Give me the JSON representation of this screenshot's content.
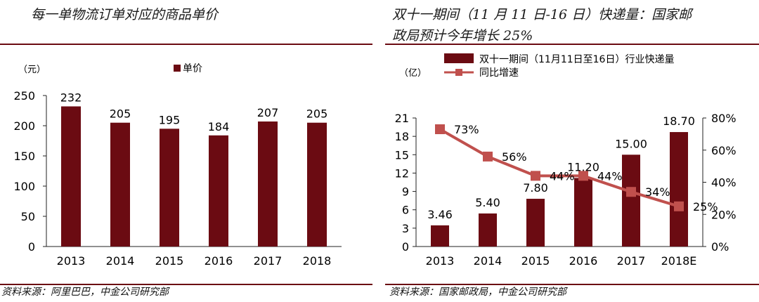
{
  "left": {
    "title": "每一单物流订单对应的商品单价",
    "unit": "（元）",
    "source": "资料来源：阿里巴巴，中金公司研究部"
  },
  "right": {
    "title_line1": "双十一期间（11 月 11 日-16 日）快递量：国家邮",
    "title_line2": "政局预计今年增长 25%",
    "unit": "（亿）",
    "source": "资料来源：国家邮政局，中金公司研究部"
  },
  "chart_data": [
    {
      "type": "bar",
      "title": "每一单物流订单对应的商品单价",
      "ylabel": "（元）",
      "categories": [
        "2013",
        "2014",
        "2015",
        "2016",
        "2017",
        "2018"
      ],
      "series": [
        {
          "name": "单价",
          "values": [
            232,
            205,
            195,
            184,
            207,
            205
          ],
          "labels": [
            "232",
            "205",
            "195",
            "184",
            "207",
            "205"
          ],
          "color": "#6b0b12"
        }
      ],
      "ylim": [
        0,
        250
      ],
      "yticks": [
        0,
        50,
        100,
        150,
        200,
        250
      ],
      "legend": "top"
    },
    {
      "type": "bar",
      "title": "双十一期间（11 月 11 日-16 日）快递量：国家邮政局预计今年增长 25%",
      "ylabel": "（亿）",
      "categories": [
        "2013",
        "2014",
        "2015",
        "2016",
        "2017",
        "2018E"
      ],
      "series": [
        {
          "name": "双十一期间（11月11日至16日）行业快递量",
          "kind": "bar",
          "axis": "left",
          "values": [
            3.46,
            5.4,
            7.8,
            11.2,
            15.0,
            18.7
          ],
          "labels": [
            "3.46",
            "5.40",
            "7.80",
            "11.20",
            "15.00",
            "18.70"
          ],
          "color": "#6b0b12"
        },
        {
          "name": "同比增速",
          "kind": "line",
          "axis": "right",
          "values": [
            73,
            56,
            44,
            44,
            34,
            25
          ],
          "labels": [
            "73%",
            "56%",
            "44%",
            "44%",
            "34%",
            "25%"
          ],
          "color": "#c0504d"
        }
      ],
      "ylim": [
        0,
        21
      ],
      "yticks": [
        "0",
        "3",
        "6",
        "9",
        "12",
        "15",
        "18",
        "21"
      ],
      "y2lim": [
        0,
        80
      ],
      "y2ticks": [
        "0%",
        "20%",
        "40%",
        "60%",
        "80%"
      ],
      "legend": "top"
    }
  ]
}
